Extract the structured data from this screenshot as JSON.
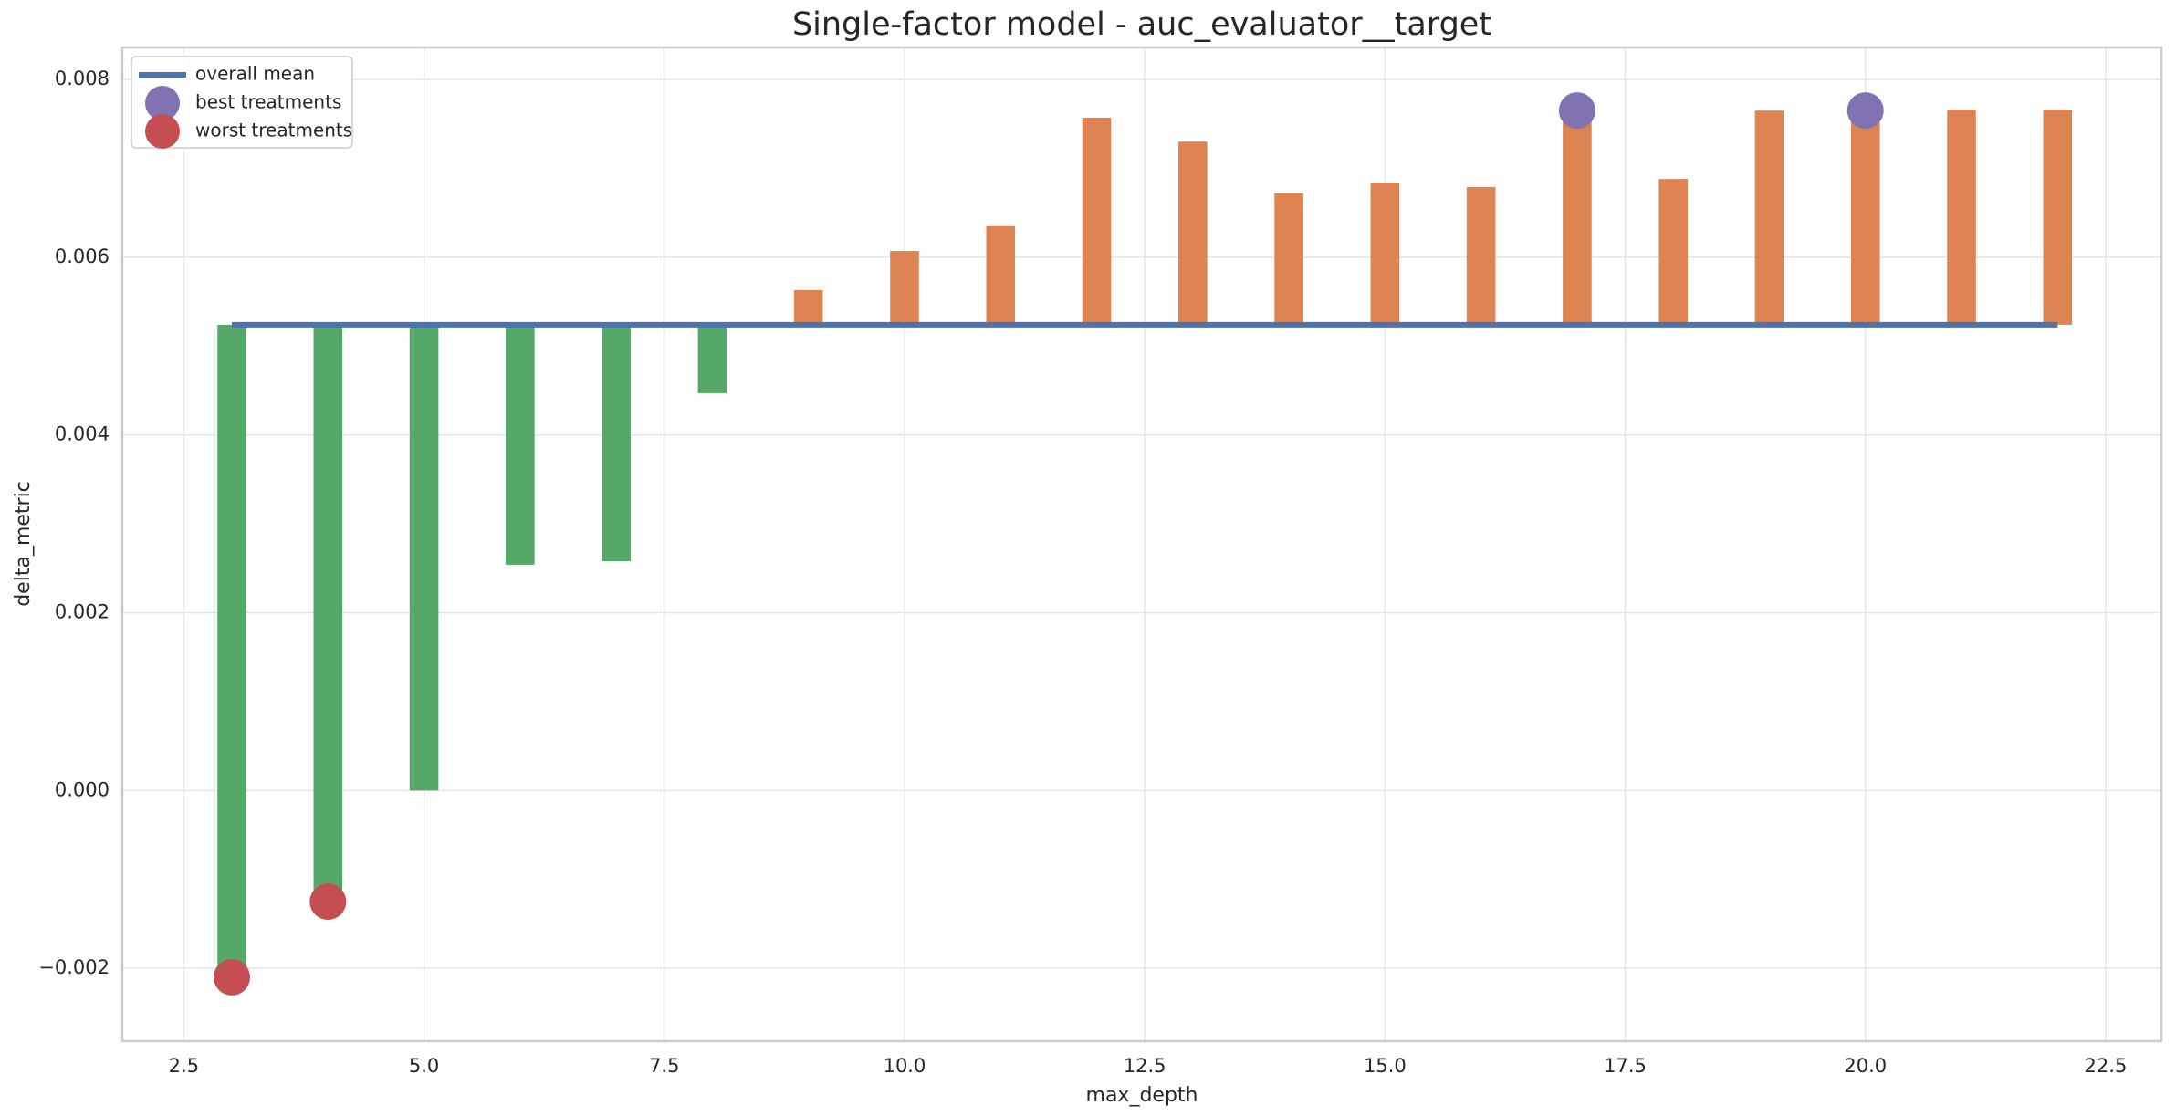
{
  "chart_data": {
    "type": "bar",
    "title": "Single-factor model - auc_evaluator__target",
    "xlabel": "max_depth",
    "ylabel": "delta_metric",
    "x": [
      3,
      4,
      5,
      6,
      7,
      8,
      9,
      10,
      11,
      12,
      13,
      14,
      15,
      16,
      17,
      18,
      19,
      20,
      21,
      22
    ],
    "values": [
      -0.0021,
      -0.00125,
      0.0,
      0.00254,
      0.00258,
      0.00447,
      0.00563,
      0.00607,
      0.00635,
      0.00757,
      0.0073,
      0.00672,
      0.00684,
      0.00679,
      0.00765,
      0.00688,
      0.00765,
      0.00765,
      0.00766,
      0.00766
    ],
    "above_color": "#dd8452",
    "below_color": "#55a868",
    "mean": {
      "name": "overall mean",
      "value": 0.00524,
      "color": "#4c72b0"
    },
    "best": {
      "name": "best treatments",
      "x": [
        17,
        20
      ],
      "values": [
        0.00765,
        0.00765
      ],
      "color": "#8172b3"
    },
    "worst": {
      "name": "worst treatments",
      "x": [
        3,
        4
      ],
      "values": [
        -0.0021,
        -0.00125
      ],
      "color": "#c44e52"
    },
    "xlim": [
      1.86,
      23.08
    ],
    "ylim": [
      -0.00282,
      0.00836
    ],
    "xticks": [
      {
        "value": 2.5,
        "label": "2.5"
      },
      {
        "value": 5,
        "label": "5.0"
      },
      {
        "value": 7.5,
        "label": "7.5"
      },
      {
        "value": 10,
        "label": "10.0"
      },
      {
        "value": 12.5,
        "label": "12.5"
      },
      {
        "value": 15,
        "label": "15.0"
      },
      {
        "value": 17.5,
        "label": "17.5"
      },
      {
        "value": 20,
        "label": "20.0"
      },
      {
        "value": 22.5,
        "label": "22.5"
      }
    ],
    "yticks": [
      {
        "value": -0.002,
        "label": "−0.002"
      },
      {
        "value": 0,
        "label": "0.000"
      },
      {
        "value": 0.002,
        "label": "0.002"
      },
      {
        "value": 0.004,
        "label": "0.004"
      },
      {
        "value": 0.006,
        "label": "0.006"
      },
      {
        "value": 0.008,
        "label": "0.008"
      }
    ],
    "grid": true,
    "legend": "upper left"
  }
}
